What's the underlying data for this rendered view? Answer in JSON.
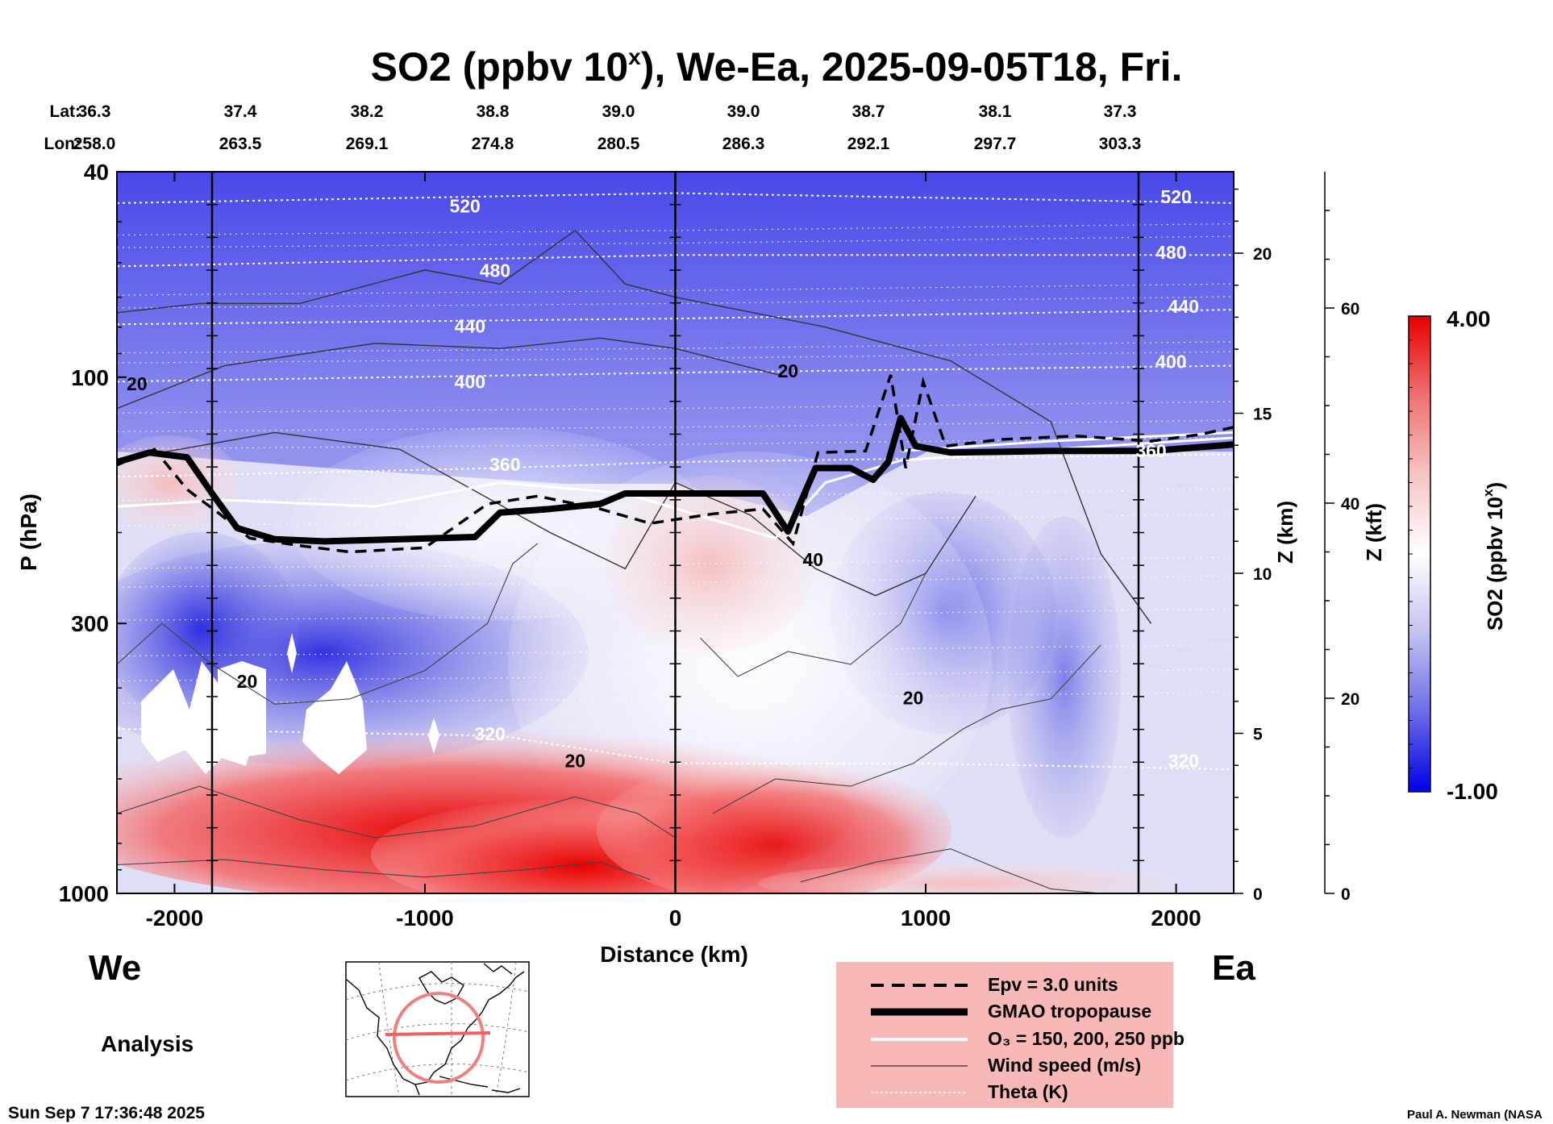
{
  "title": {
    "main": "SO2 (ppbv 10",
    "superscript": "x",
    "rest": "), We-Ea, 2025-09-05T18, Fri."
  },
  "top_labels": {
    "lat_label": "Lat:",
    "lon_label": "Lon:",
    "lat": [
      "36.3",
      "37.4",
      "38.2",
      "38.8",
      "39.0",
      "39.0",
      "38.7",
      "38.1",
      "37.3"
    ],
    "lon": [
      "258.0",
      "263.5",
      "269.1",
      "274.8",
      "280.5",
      "286.3",
      "292.1",
      "297.7",
      "303.3"
    ]
  },
  "directions": {
    "west": "We",
    "east": "Ea"
  },
  "analysis_label": "Analysis",
  "timestamp": "Sun Sep  7 17:36:48 2025",
  "credit": "Paul A. Newman (NASA",
  "colorbar": {
    "label": "SO2 (ppbv 10",
    "label_sup": "x",
    "label_end": ")",
    "max_label": "4.00",
    "min_label": "-1.00",
    "stops": [
      "#0000e6",
      "#6c6ce6",
      "#c2c2f2",
      "#ffffff",
      "#f6c4c4",
      "#f07070",
      "#e60000"
    ]
  },
  "legend": {
    "items": [
      "Epv = 3.0 units",
      "GMAO tropopause",
      "O₃ = 150, 200, 250 ppb",
      "Wind speed (m/s)",
      "Theta (K)"
    ]
  },
  "chart_data": {
    "type": "heatmap",
    "title": "SO2 (ppbv 10^x), We-Ea, 2025-09-05T18, Fri.",
    "xlabel": "Distance (km)",
    "ylabel": "P (hPa)",
    "y2label": "Z (km)",
    "y3label": "Z (kft)",
    "colorbar_label": "SO2 (ppbv 10^x)",
    "xlim": [
      -2230,
      2230
    ],
    "ylim_hpa": [
      1000,
      40
    ],
    "y_scale": "log",
    "x_ticks": [
      -2000,
      -1000,
      0,
      1000,
      2000
    ],
    "x_tick_labels": [
      "-2000",
      "-1000",
      "0",
      "1000",
      "2000"
    ],
    "y_ticks_hpa": [
      1000,
      300,
      100,
      40
    ],
    "y_tick_labels": [
      "1000",
      "300",
      "100",
      "40"
    ],
    "z_km_ticks": [
      0,
      5,
      10,
      15,
      20
    ],
    "z_km_labels": [
      "0",
      "5",
      "10",
      "15",
      "20"
    ],
    "z_kft_ticks": [
      0,
      20,
      40,
      60
    ],
    "z_kft_labels": [
      "0",
      "20",
      "40",
      "60"
    ],
    "colorbar_range": [
      -1.0,
      4.0
    ],
    "vertical_lines_km": [
      -1850,
      0,
      1850
    ],
    "theta_labels": [
      {
        "text": "520",
        "x": -840,
        "p": 48
      },
      {
        "text": "480",
        "x": -720,
        "p": 64
      },
      {
        "text": "440",
        "x": -820,
        "p": 82
      },
      {
        "text": "400",
        "x": -820,
        "p": 105
      },
      {
        "text": "360",
        "x": -680,
        "p": 152
      },
      {
        "text": "320",
        "x": -740,
        "p": 505
      },
      {
        "text": "520",
        "x": 2000,
        "p": 46
      },
      {
        "text": "480",
        "x": 1980,
        "p": 59
      },
      {
        "text": "440",
        "x": 2030,
        "p": 75
      },
      {
        "text": "400",
        "x": 1980,
        "p": 96
      },
      {
        "text": "360",
        "x": 1900,
        "p": 143
      },
      {
        "text": "320",
        "x": 2030,
        "p": 570
      }
    ],
    "wind_labels": [
      {
        "text": "20",
        "x": -2150,
        "p": 106
      },
      {
        "text": "20",
        "x": 450,
        "p": 100
      },
      {
        "text": "40",
        "x": 550,
        "p": 232
      },
      {
        "text": "20",
        "x": 950,
        "p": 430
      },
      {
        "text": "20",
        "x": -1710,
        "p": 400
      },
      {
        "text": "20",
        "x": -400,
        "p": 570
      }
    ],
    "tropopause_hpa": [
      {
        "x": -2230,
        "p": 146
      },
      {
        "x": -2100,
        "p": 140
      },
      {
        "x": -1950,
        "p": 143
      },
      {
        "x": -1850,
        "p": 168
      },
      {
        "x": -1750,
        "p": 196
      },
      {
        "x": -1600,
        "p": 206
      },
      {
        "x": -1400,
        "p": 208
      },
      {
        "x": -1100,
        "p": 206
      },
      {
        "x": -800,
        "p": 204
      },
      {
        "x": -700,
        "p": 183
      },
      {
        "x": -500,
        "p": 180
      },
      {
        "x": -300,
        "p": 176
      },
      {
        "x": -200,
        "p": 168
      },
      {
        "x": 0,
        "p": 168
      },
      {
        "x": 350,
        "p": 168
      },
      {
        "x": 450,
        "p": 199
      },
      {
        "x": 560,
        "p": 150
      },
      {
        "x": 700,
        "p": 150
      },
      {
        "x": 790,
        "p": 158
      },
      {
        "x": 850,
        "p": 146
      },
      {
        "x": 900,
        "p": 120
      },
      {
        "x": 960,
        "p": 136
      },
      {
        "x": 1100,
        "p": 140
      },
      {
        "x": 1500,
        "p": 139
      },
      {
        "x": 1900,
        "p": 139
      },
      {
        "x": 2230,
        "p": 135
      }
    ],
    "epv_hpa": [
      {
        "x": -2230,
        "p": 148
      },
      {
        "x": -2080,
        "p": 138
      },
      {
        "x": -1950,
        "p": 165
      },
      {
        "x": -1820,
        "p": 184
      },
      {
        "x": -1700,
        "p": 205
      },
      {
        "x": -1500,
        "p": 212
      },
      {
        "x": -1300,
        "p": 218
      },
      {
        "x": -1000,
        "p": 214
      },
      {
        "x": -750,
        "p": 176
      },
      {
        "x": -550,
        "p": 170
      },
      {
        "x": -300,
        "p": 180
      },
      {
        "x": -100,
        "p": 192
      },
      {
        "x": 150,
        "p": 184
      },
      {
        "x": 350,
        "p": 180
      },
      {
        "x": 470,
        "p": 210
      },
      {
        "x": 570,
        "p": 140
      },
      {
        "x": 760,
        "p": 139
      },
      {
        "x": 860,
        "p": 99
      },
      {
        "x": 920,
        "p": 150
      },
      {
        "x": 990,
        "p": 102
      },
      {
        "x": 1080,
        "p": 136
      },
      {
        "x": 1300,
        "p": 132
      },
      {
        "x": 1600,
        "p": 130
      },
      {
        "x": 1900,
        "p": 133
      },
      {
        "x": 2100,
        "p": 129
      },
      {
        "x": 2230,
        "p": 125
      }
    ],
    "ozone_contours": [
      {
        "name": "O3 ~150 ppb",
        "points": [
          {
            "x": -2230,
            "p": 178
          },
          {
            "x": -1800,
            "p": 173
          },
          {
            "x": -1200,
            "p": 178
          },
          {
            "x": -700,
            "p": 160
          },
          {
            "x": -200,
            "p": 168
          },
          {
            "x": 200,
            "p": 192
          },
          {
            "x": 400,
            "p": 205
          },
          {
            "x": 600,
            "p": 160
          },
          {
            "x": 900,
            "p": 145
          },
          {
            "x": 1500,
            "p": 138
          },
          {
            "x": 2230,
            "p": 131
          }
        ]
      },
      {
        "name": "O3 ~200 ppb",
        "points": [
          {
            "x": 900,
            "p": 139
          },
          {
            "x": 1500,
            "p": 133
          },
          {
            "x": 2230,
            "p": 128
          }
        ]
      }
    ],
    "theta_contours": [
      {
        "level": 520,
        "points": [
          {
            "x": -2230,
            "p": 46
          },
          {
            "x": 0,
            "p": 44
          },
          {
            "x": 2230,
            "p": 46
          }
        ]
      },
      {
        "level": 480,
        "points": [
          {
            "x": -2230,
            "p": 61
          },
          {
            "x": 0,
            "p": 58
          },
          {
            "x": 2230,
            "p": 58
          }
        ]
      },
      {
        "level": 440,
        "points": [
          {
            "x": -2230,
            "p": 79
          },
          {
            "x": 0,
            "p": 77
          },
          {
            "x": 2230,
            "p": 74
          }
        ]
      },
      {
        "level": 400,
        "points": [
          {
            "x": -2230,
            "p": 102
          },
          {
            "x": 0,
            "p": 98
          },
          {
            "x": 2230,
            "p": 95
          }
        ]
      },
      {
        "level": 360,
        "points": [
          {
            "x": -2230,
            "p": 156
          },
          {
            "x": -700,
            "p": 150
          },
          {
            "x": 0,
            "p": 146
          },
          {
            "x": 2230,
            "p": 141
          }
        ]
      },
      {
        "level": 320,
        "points": [
          {
            "x": -2230,
            "p": 480
          },
          {
            "x": -700,
            "p": 495
          },
          {
            "x": 0,
            "p": 560
          },
          {
            "x": 1000,
            "p": 560
          },
          {
            "x": 2230,
            "p": 575
          }
        ]
      }
    ],
    "wind_contours": [
      {
        "level": 20,
        "points": [
          {
            "x": -2230,
            "p": 75
          },
          {
            "x": -1900,
            "p": 72
          },
          {
            "x": -1500,
            "p": 72
          },
          {
            "x": -1000,
            "p": 62
          },
          {
            "x": -700,
            "p": 66
          },
          {
            "x": -400,
            "p": 52
          },
          {
            "x": -200,
            "p": 66
          },
          {
            "x": 0,
            "p": 70
          },
          {
            "x": 600,
            "p": 80
          },
          {
            "x": 1100,
            "p": 93
          },
          {
            "x": 1500,
            "p": 122
          },
          {
            "x": 1700,
            "p": 220
          },
          {
            "x": 1900,
            "p": 300
          }
        ]
      },
      {
        "level": 20,
        "points": [
          {
            "x": -2230,
            "p": 115
          },
          {
            "x": -1800,
            "p": 95
          },
          {
            "x": -1200,
            "p": 86
          },
          {
            "x": -700,
            "p": 88
          },
          {
            "x": -300,
            "p": 84
          },
          {
            "x": 0,
            "p": 88
          },
          {
            "x": 450,
            "p": 100
          }
        ]
      },
      {
        "level": 40,
        "points": [
          {
            "x": -2230,
            "p": 145
          },
          {
            "x": -1600,
            "p": 128
          },
          {
            "x": -1100,
            "p": 138
          },
          {
            "x": -500,
            "p": 200
          },
          {
            "x": -200,
            "p": 235
          },
          {
            "x": 0,
            "p": 160
          },
          {
            "x": 300,
            "p": 185
          },
          {
            "x": 560,
            "p": 235
          },
          {
            "x": 800,
            "p": 265
          },
          {
            "x": 1000,
            "p": 240
          },
          {
            "x": 1200,
            "p": 170
          }
        ]
      }
    ]
  }
}
